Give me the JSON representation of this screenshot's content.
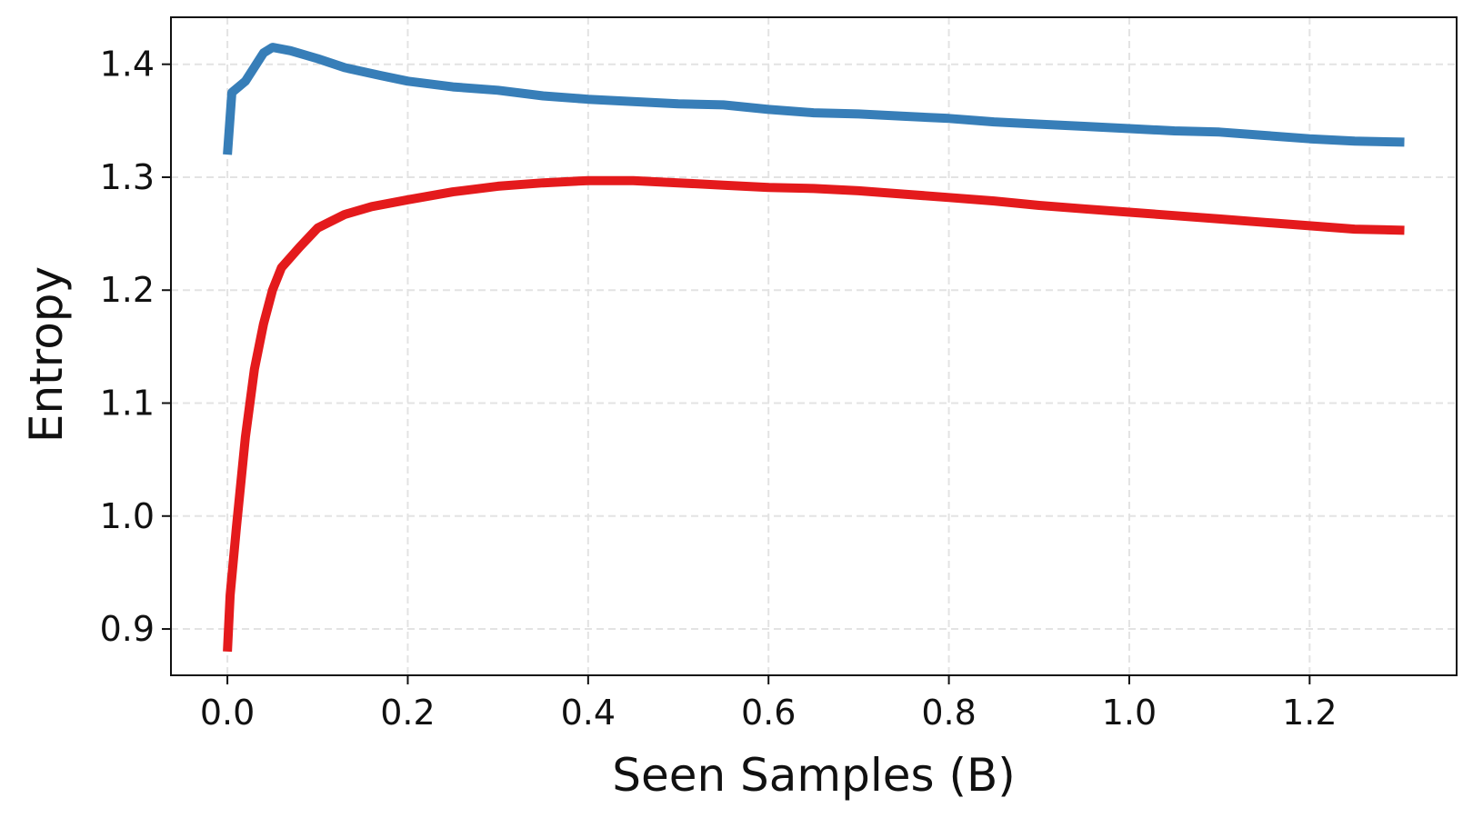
{
  "chart_data": {
    "type": "line",
    "x_label": "Seen Samples (B)",
    "y_label": "Entropy",
    "xlim": [
      -0.0626,
      1.363
    ],
    "ylim": [
      0.859,
      1.4416
    ],
    "xticks": [
      {
        "value": 0,
        "label": "0.0"
      },
      0.2,
      0.4,
      0.6,
      0.8,
      {
        "value": 1,
        "label": "1.0"
      },
      1.2
    ],
    "yticks": [
      0.9,
      {
        "value": 1,
        "label": "1.0"
      },
      1.1,
      1.2,
      1.3,
      1.4
    ],
    "grid": true,
    "series": [
      {
        "color": "#377eb8",
        "x": [
          0,
          0.005,
          0.02,
          0.04,
          0.05,
          0.07,
          0.1,
          0.13,
          0.17,
          0.2,
          0.25,
          0.3,
          0.35,
          0.4,
          0.45,
          0.5,
          0.55,
          0.6,
          0.65,
          0.7,
          0.75,
          0.8,
          0.85,
          0.9,
          0.95,
          1.0,
          1.05,
          1.1,
          1.15,
          1.2,
          1.25,
          1.305
        ],
        "values": [
          1.32,
          1.375,
          1.385,
          1.41,
          1.415,
          1.412,
          1.405,
          1.397,
          1.39,
          1.385,
          1.38,
          1.377,
          1.372,
          1.369,
          1.367,
          1.365,
          1.364,
          1.36,
          1.357,
          1.356,
          1.354,
          1.352,
          1.349,
          1.347,
          1.345,
          1.343,
          1.341,
          1.34,
          1.337,
          1.334,
          1.332,
          1.331
        ]
      },
      {
        "color": "#e41a1c",
        "x": [
          0,
          0.003,
          0.01,
          0.02,
          0.03,
          0.04,
          0.05,
          0.06,
          0.08,
          0.1,
          0.13,
          0.16,
          0.2,
          0.25,
          0.3,
          0.35,
          0.4,
          0.45,
          0.5,
          0.55,
          0.6,
          0.65,
          0.7,
          0.75,
          0.8,
          0.85,
          0.9,
          0.95,
          1.0,
          1.05,
          1.1,
          1.15,
          1.2,
          1.25,
          1.305
        ],
        "values": [
          0.88,
          0.93,
          0.99,
          1.07,
          1.13,
          1.17,
          1.2,
          1.22,
          1.238,
          1.255,
          1.267,
          1.274,
          1.28,
          1.287,
          1.292,
          1.295,
          1.297,
          1.297,
          1.295,
          1.293,
          1.291,
          1.29,
          1.288,
          1.285,
          1.282,
          1.279,
          1.275,
          1.272,
          1.269,
          1.266,
          1.263,
          1.26,
          1.257,
          1.254,
          1.253
        ]
      }
    ]
  }
}
